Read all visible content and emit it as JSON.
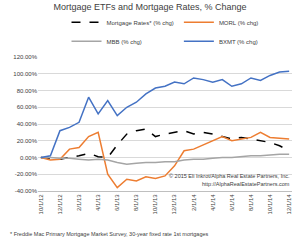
{
  "chart_data": {
    "type": "line",
    "title": "Mortgage ETFs and Mortgage Rates, % Change",
    "categories": [
      "10/1/12",
      null,
      "12/1/12",
      null,
      "2/1/13",
      null,
      "4/1/13",
      null,
      "6/1/13",
      null,
      "8/1/13",
      null,
      "10/1/13",
      null,
      "12/1/13",
      null,
      "2/1/14",
      null,
      "4/1/14",
      null,
      "6/1/14",
      null,
      "8/1/14",
      null,
      "10/1/14",
      null,
      "12/1/14"
    ],
    "series": [
      {
        "name": "Mortgage Rates* (% chg)",
        "color": "#000000",
        "line_style": "dashed",
        "values": [
          0,
          -1,
          -2,
          0,
          2,
          5,
          1,
          0,
          15,
          28,
          32,
          34,
          25,
          28,
          30,
          32,
          28,
          30,
          28,
          25,
          22,
          24,
          22,
          20,
          18,
          14,
          8
        ]
      },
      {
        "name": "MORL (% chg)",
        "color": "#ed7d31",
        "line_style": "solid",
        "values": [
          0,
          -3,
          -2,
          10,
          12,
          25,
          30,
          -20,
          -36,
          -26,
          -28,
          -23,
          -25,
          -22,
          -10,
          8,
          10,
          15,
          20,
          25,
          20,
          22,
          24,
          30,
          24,
          23,
          22
        ]
      },
      {
        "name": "MBB (% chg)",
        "color": "#a5a5a5",
        "line_style": "solid",
        "values": [
          0,
          0,
          -1,
          -1,
          -2,
          -3,
          -2,
          -3,
          -6,
          -8,
          -7,
          -6,
          -6,
          -5,
          -5,
          -3,
          -2,
          -2,
          -1,
          0,
          0,
          1,
          2,
          2,
          3,
          4,
          4
        ]
      },
      {
        "name": "BXMT (% chg)",
        "color": "#4472c4",
        "line_style": "solid",
        "values": [
          0,
          2,
          32,
          36,
          42,
          72,
          52,
          68,
          50,
          60,
          66,
          76,
          83,
          85,
          90,
          88,
          95,
          93,
          90,
          93,
          85,
          88,
          95,
          92,
          98,
          102,
          103
        ]
      }
    ],
    "ylim": [
      -40,
      120
    ],
    "yticks": [
      {
        "value": -40,
        "label": "-40.00%"
      },
      {
        "value": -20,
        "label": "-20.00%"
      },
      {
        "value": 0,
        "label": "0.00%"
      },
      {
        "value": 20,
        "label": "20.00%"
      },
      {
        "value": 40,
        "label": "40.00%"
      },
      {
        "value": 60,
        "label": "60.00%"
      },
      {
        "value": 80,
        "label": "80.00%"
      },
      {
        "value": 100,
        "label": "100.00%"
      },
      {
        "value": 120,
        "label": "120.00%"
      }
    ],
    "grid": true,
    "legend": "top",
    "annotations": [
      "* Freddie Mac Primary Mortgage Market Survey, 30-year fixed rate 1st mortgages",
      "© 2015 Eli Inkrot/Alpha Real Estate Partners, Inc.",
      "http://AlphaRealEstatePartners.com"
    ]
  }
}
